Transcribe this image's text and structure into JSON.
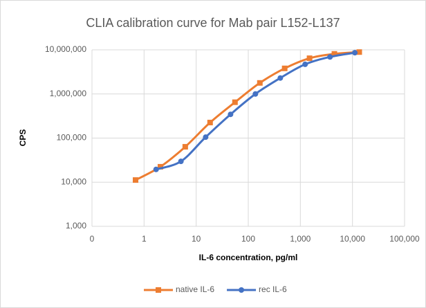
{
  "chart_data": {
    "type": "line",
    "title": "CLIA calibration curve for Mab pair L152-L137",
    "xlabel": "IL-6 concentration, pg/ml",
    "ylabel": "CPS",
    "xscale": "log",
    "yscale": "log",
    "grid": true,
    "legend": "bottom",
    "smooth": true,
    "xlim": [
      0.1,
      100000
    ],
    "xticks": [
      {
        "value": 0.1,
        "label": "0"
      },
      1,
      10,
      100,
      {
        "value": 1000,
        "label": "1,000"
      },
      {
        "value": 10000,
        "label": "10,000"
      },
      {
        "value": 100000,
        "label": "100,000"
      }
    ],
    "ylim": [
      1000,
      10000000
    ],
    "yticks": [
      {
        "value": 1000,
        "label": "1,000"
      },
      {
        "value": 10000,
        "label": "10,000"
      },
      {
        "value": 100000,
        "label": "100,000"
      },
      {
        "value": 1000000,
        "label": "1,000,000"
      },
      {
        "value": 10000000,
        "label": "10,000,000"
      }
    ],
    "series": [
      {
        "name": "native IL-6",
        "color": "#ED7D31",
        "marker": "square",
        "x": [
          0.686,
          2.06,
          6.17,
          18.5,
          55.6,
          167,
          500,
          1500,
          4500,
          13500
        ],
        "values": [
          11200,
          22400,
          63500,
          225000,
          650000,
          1780000,
          3800000,
          6450000,
          8100000,
          8900000
        ]
      },
      {
        "name": "rec IL-6",
        "color": "#4472C4",
        "marker": "circle",
        "x": [
          1.7,
          5.1,
          15.2,
          45.7,
          137,
          412,
          1235,
          3704,
          11111
        ],
        "values": [
          19500,
          29700,
          105000,
          345000,
          1000000,
          2300000,
          4700000,
          6900000,
          8600000
        ]
      }
    ]
  }
}
